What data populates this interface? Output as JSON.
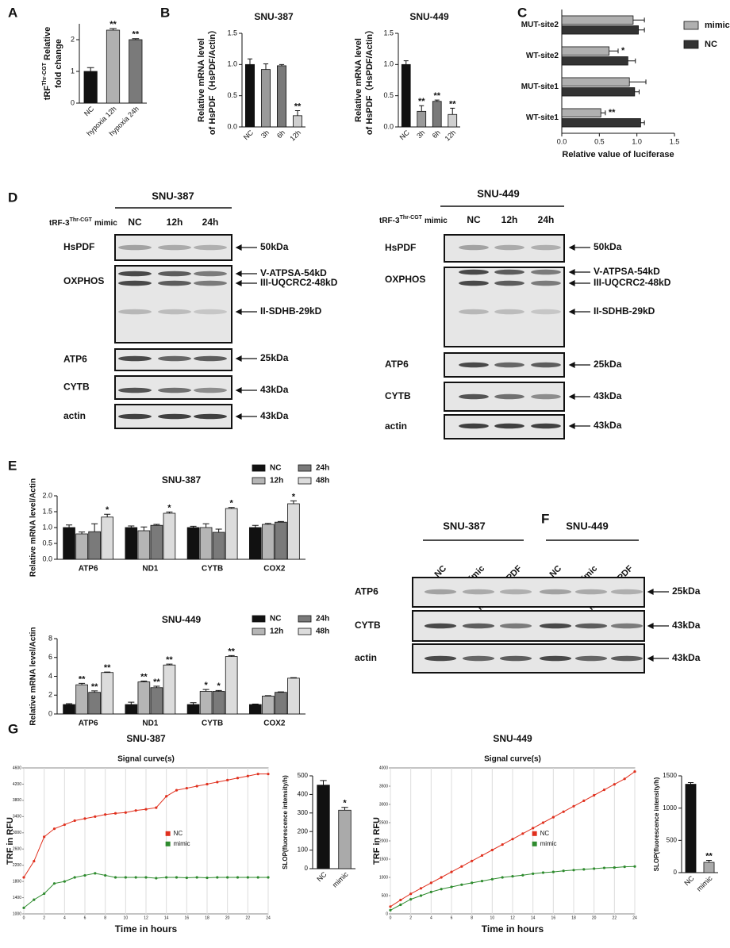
{
  "panels": [
    "A",
    "B",
    "C",
    "D",
    "E",
    "F",
    "G"
  ],
  "chart_data": [
    {
      "type": "bar",
      "ylabel": [
        [
          "tRF",
          "Thr-CGT",
          "Relative"
        ],
        "fold change"
      ],
      "categories": [
        "NC",
        "hypoxia 12h",
        "hypoxia 24h"
      ],
      "values": [
        1.0,
        2.3,
        2.0
      ],
      "errors": [
        0.12,
        0.05,
        0.03
      ],
      "colors": [
        "#111111",
        "#b0b0b0",
        "#7a7a7a"
      ],
      "significance": [
        null,
        "**",
        "**"
      ],
      "ylim": [
        0,
        2.5
      ],
      "yticks": [
        0,
        1,
        2
      ]
    },
    {
      "type": "bar",
      "title": "SNU-387",
      "ylabel": [
        "Relative mRNA level",
        "of HsPDF（HsPDF/Actin）"
      ],
      "categories": [
        "NC",
        "3h",
        "6h",
        "12h"
      ],
      "values": [
        1.0,
        0.92,
        0.98,
        0.18
      ],
      "errors": [
        0.09,
        0.09,
        0.02,
        0.08
      ],
      "colors": [
        "#111111",
        "#9a9a9a",
        "#7a7a7a",
        "#cfcfcf"
      ],
      "significance": [
        null,
        null,
        null,
        "**"
      ],
      "ylim": [
        0,
        1.5
      ],
      "yticks": [
        {
          "value": 0,
          "label": "0.0"
        },
        {
          "value": 0.5,
          "label": "0.5"
        },
        {
          "value": 1,
          "label": "1.0"
        },
        {
          "value": 1.5,
          "label": "1.5"
        }
      ]
    },
    {
      "type": "bar",
      "title": "SNU-449",
      "ylabel": [
        "Relative mRNA level",
        "of HsPDF（HsPDF/Actin）"
      ],
      "categories": [
        "NC",
        "3h",
        "6h",
        "12h"
      ],
      "values": [
        1.0,
        0.25,
        0.41,
        0.2
      ],
      "errors": [
        0.06,
        0.09,
        0.02,
        0.1
      ],
      "colors": [
        "#111111",
        "#9a9a9a",
        "#7a7a7a",
        "#cfcfcf"
      ],
      "significance": [
        null,
        "**",
        "**",
        "**"
      ],
      "ylim": [
        0,
        1.5
      ],
      "yticks": [
        {
          "value": 0,
          "label": "0.0"
        },
        {
          "value": 0.5,
          "label": "0.5"
        },
        {
          "value": 1,
          "label": "1.0"
        },
        {
          "value": 1.5,
          "label": "1.5"
        }
      ]
    },
    {
      "type": "hbar",
      "xlabel": "Relative value of luciferase",
      "categories": [
        "MUT-site2",
        "WT-site2",
        "MUT-site1",
        "WT-site1"
      ],
      "series": [
        {
          "name": "mimic",
          "color": "#b0b0b0",
          "values": [
            0.95,
            0.63,
            0.9,
            0.52
          ],
          "errors": [
            0.15,
            0.12,
            0.22,
            0.06
          ],
          "significance": [
            null,
            "*",
            null,
            "**"
          ]
        },
        {
          "name": "NC",
          "color": "#333333",
          "values": [
            1.02,
            0.88,
            0.97,
            1.05
          ],
          "errors": [
            0.08,
            0.1,
            0.06,
            0.05
          ]
        }
      ],
      "xlim": [
        0,
        1.5
      ],
      "xticks": [
        {
          "value": 0,
          "label": "0.0"
        },
        {
          "value": 0.5,
          "label": "0.5"
        },
        {
          "value": 1,
          "label": "1.0"
        },
        {
          "value": 1.5,
          "label": "1.5"
        }
      ]
    },
    {
      "type": "grouped-bar",
      "title": "SNU-387",
      "ylabel": "Relative mRNA level/Actin",
      "categories": [
        "ATP6",
        "ND1",
        "CYTB",
        "COX2"
      ],
      "series": [
        {
          "name": "NC",
          "color": "#111111",
          "values": [
            1.0,
            1.0,
            1.0,
            1.0
          ],
          "errors": [
            0.08,
            0.05,
            0.04,
            0.07
          ]
        },
        {
          "name": "12h",
          "color": "#b5b5b5",
          "values": [
            0.8,
            0.9,
            1.0,
            1.1
          ],
          "errors": [
            0.06,
            0.12,
            0.12,
            0.03
          ]
        },
        {
          "name": "24h",
          "color": "#7a7a7a",
          "values": [
            0.87,
            1.07,
            0.85,
            1.17
          ],
          "errors": [
            0.25,
            0.03,
            0.1,
            0.02
          ]
        },
        {
          "name": "48h",
          "color": "#dcdcdc",
          "values": [
            1.33,
            1.45,
            1.6,
            1.75
          ],
          "errors": [
            0.09,
            0.04,
            0.03,
            0.09
          ],
          "significance": [
            "*",
            "*",
            "*",
            "*"
          ]
        }
      ],
      "ylim": [
        0,
        2.0
      ],
      "yticks": [
        {
          "value": 0,
          "label": "0.0"
        },
        {
          "value": 0.5,
          "label": "0.5"
        },
        {
          "value": 1,
          "label": "1.0"
        },
        {
          "value": 1.5,
          "label": "1.5"
        },
        {
          "value": 2,
          "label": "2.0"
        }
      ]
    },
    {
      "type": "grouped-bar",
      "title": "SNU-449",
      "ylabel": "Relative mRNA level/Actin",
      "categories": [
        "ATP6",
        "ND1",
        "CYTB",
        "COX2"
      ],
      "series": [
        {
          "name": "NC",
          "color": "#111111",
          "values": [
            1.0,
            1.0,
            1.0,
            1.0
          ],
          "errors": [
            0.1,
            0.25,
            0.2,
            0.05
          ]
        },
        {
          "name": "12h",
          "color": "#b5b5b5",
          "values": [
            3.1,
            3.4,
            2.4,
            1.9
          ],
          "errors": [
            0.15,
            0.1,
            0.2,
            0.05
          ],
          "significance": [
            "**",
            "**",
            "*",
            null
          ]
        },
        {
          "name": "24h",
          "color": "#7a7a7a",
          "values": [
            2.3,
            2.8,
            2.4,
            2.3
          ],
          "errors": [
            0.15,
            0.15,
            0.1,
            0.05
          ],
          "significance": [
            "**",
            "**",
            "*",
            null
          ]
        },
        {
          "name": "48h",
          "color": "#dcdcdc",
          "values": [
            4.4,
            5.2,
            6.1,
            3.8
          ],
          "errors": [
            0.05,
            0.1,
            0.1,
            0.05
          ],
          "significance": [
            "**",
            "**",
            "**",
            null
          ]
        }
      ],
      "ylim": [
        0,
        8
      ],
      "yticks": [
        0,
        2,
        4,
        6,
        8
      ]
    },
    {
      "type": "line",
      "title": "SNU-387",
      "subtitle": "Signal curve(s)",
      "xlabel": "Time in hours",
      "ylabel": "TRF in RFU",
      "x": [
        0,
        1,
        2,
        3,
        4,
        5,
        6,
        7,
        8,
        9,
        10,
        11,
        12,
        13,
        14,
        15,
        16,
        17,
        18,
        19,
        20,
        21,
        22,
        23,
        24
      ],
      "series": [
        {
          "name": "NC",
          "color": "#e0301e",
          "values": [
            1900,
            2300,
            2900,
            3100,
            3200,
            3300,
            3350,
            3400,
            3450,
            3480,
            3500,
            3550,
            3580,
            3620,
            3900,
            4050,
            4100,
            4150,
            4200,
            4250,
            4300,
            4350,
            4400,
            4450,
            4450
          ]
        },
        {
          "name": "mimic",
          "color": "#2e8b2e",
          "values": [
            1150,
            1350,
            1500,
            1750,
            1800,
            1900,
            1950,
            2000,
            1950,
            1900,
            1900,
            1900,
            1900,
            1880,
            1900,
            1900,
            1890,
            1900,
            1890,
            1900,
            1900,
            1900,
            1900,
            1900,
            1900
          ]
        }
      ],
      "xlim": [
        0,
        24
      ],
      "xticks": [
        0,
        2,
        4,
        6,
        8,
        10,
        12,
        14,
        16,
        18,
        20,
        22,
        24
      ],
      "ylim": [
        1000,
        4600
      ],
      "yticks": [
        1000,
        1400,
        1800,
        2200,
        2600,
        3000,
        3400,
        3800,
        4200,
        4600
      ],
      "grid": true
    },
    {
      "type": "bar",
      "ylabel": "SLOP(fluorescence intensity/h)",
      "categories": [
        "NC",
        "mimic"
      ],
      "values": [
        450,
        315
      ],
      "errors": [
        25,
        15
      ],
      "colors": [
        "#111111",
        "#aaaaaa"
      ],
      "significance": [
        null,
        "*"
      ],
      "ylim": [
        0,
        500
      ],
      "yticks": [
        0,
        100,
        200,
        300,
        400,
        500
      ]
    },
    {
      "type": "line",
      "title": "SNU-449",
      "subtitle": "Signal curve(s)",
      "xlabel": "Time in hours",
      "ylabel": "TRF in RFU",
      "x": [
        0,
        1,
        2,
        3,
        4,
        5,
        6,
        7,
        8,
        9,
        10,
        11,
        12,
        13,
        14,
        15,
        16,
        17,
        18,
        19,
        20,
        21,
        22,
        23,
        24
      ],
      "series": [
        {
          "name": "NC",
          "color": "#e0301e",
          "values": [
            200,
            380,
            550,
            700,
            850,
            1000,
            1150,
            1300,
            1450,
            1600,
            1750,
            1900,
            2050,
            2200,
            2350,
            2500,
            2650,
            2800,
            2950,
            3100,
            3250,
            3400,
            3550,
            3700,
            3900
          ]
        },
        {
          "name": "mimic",
          "color": "#2e8b2e",
          "values": [
            100,
            250,
            400,
            500,
            600,
            680,
            740,
            800,
            850,
            900,
            950,
            1000,
            1030,
            1060,
            1100,
            1130,
            1150,
            1180,
            1200,
            1220,
            1240,
            1260,
            1270,
            1290,
            1300
          ]
        }
      ],
      "xlim": [
        0,
        24
      ],
      "xticks": [
        0,
        2,
        4,
        6,
        8,
        10,
        12,
        14,
        16,
        18,
        20,
        22,
        24
      ],
      "ylim": [
        0,
        4000
      ],
      "yticks": [
        0,
        500,
        1000,
        1500,
        2000,
        2500,
        3000,
        3500,
        4000
      ],
      "grid": true
    },
    {
      "type": "bar",
      "ylabel": "SLOP(fluorescence intensity/h)",
      "categories": [
        "NC",
        "mimic"
      ],
      "values": [
        1370,
        160
      ],
      "errors": [
        25,
        30
      ],
      "colors": [
        "#111111",
        "#aaaaaa"
      ],
      "significance": [
        null,
        "**"
      ],
      "ylim": [
        0,
        1500
      ],
      "yticks": [
        0,
        500,
        1000,
        1500
      ]
    }
  ],
  "blots": [
    {
      "titles": [
        "SNU-387"
      ],
      "mimic_label": [
        "tRF-3",
        "Thr-CGT",
        "mimic"
      ],
      "lanes": [
        "NC",
        "12h",
        "24h"
      ],
      "rows": [
        {
          "name": "HsPDF",
          "markers": [
            "50kDa"
          ]
        },
        {
          "name": "OXPHOS",
          "markers": [
            "V-ATPSA-54kD",
            "III-UQCRC2-48kD",
            "II-SDHB-29kD"
          ]
        },
        {
          "name": "ATP6",
          "markers": [
            "25kDa"
          ]
        },
        {
          "name": "CYTB",
          "markers": [
            "43kDa"
          ]
        },
        {
          "name": "actin",
          "markers": [
            "43kDa"
          ]
        }
      ]
    },
    {
      "titles": [
        "SNU-449"
      ],
      "mimic_label": [
        "tRF-3",
        "Thr-CGT",
        "mimic"
      ],
      "lanes": [
        "NC",
        "12h",
        "24h"
      ],
      "rows": [
        {
          "name": "HsPDF",
          "markers": [
            "50kDa"
          ]
        },
        {
          "name": "OXPHOS",
          "markers": [
            "V-ATPSA-54kD",
            "III-UQCRC2-48kD",
            "II-SDHB-29kD"
          ]
        },
        {
          "name": "ATP6",
          "markers": [
            "25kDa"
          ]
        },
        {
          "name": "CYTB",
          "markers": [
            "43kDa"
          ]
        },
        {
          "name": "actin",
          "markers": [
            "43kDa"
          ]
        }
      ]
    },
    {
      "titles": [
        "SNU-387",
        "SNU-449"
      ],
      "lanes": [
        "NC",
        "mimic",
        "mimic+HsPDF",
        "NC",
        "mimic",
        "mimic+HsPDF"
      ],
      "rows": [
        {
          "name": "ATP6",
          "markers": [
            "25kDa"
          ]
        },
        {
          "name": "CYTB",
          "markers": [
            "43kDa"
          ]
        },
        {
          "name": "actin",
          "markers": [
            "43kDa"
          ]
        }
      ]
    }
  ]
}
